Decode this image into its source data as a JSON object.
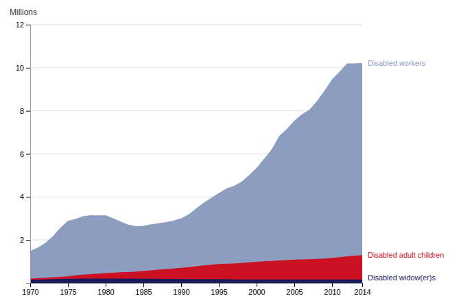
{
  "chart_data": {
    "type": "area",
    "ylabel": "Millions",
    "x": [
      1970,
      1971,
      1972,
      1973,
      1974,
      1975,
      1976,
      1977,
      1978,
      1979,
      1980,
      1981,
      1982,
      1983,
      1984,
      1985,
      1986,
      1987,
      1988,
      1989,
      1990,
      1991,
      1992,
      1993,
      1994,
      1995,
      1996,
      1997,
      1998,
      1999,
      2000,
      2001,
      2002,
      2003,
      2004,
      2005,
      2006,
      2007,
      2008,
      2009,
      2010,
      2011,
      2012,
      2013,
      2014
    ],
    "series": [
      {
        "name": "Disabled workers",
        "color": "#8c9dc0",
        "values": [
          1.49,
          1.65,
          1.86,
          2.17,
          2.57,
          2.89,
          2.98,
          3.1,
          3.15,
          3.14,
          3.15,
          3.01,
          2.86,
          2.71,
          2.64,
          2.66,
          2.73,
          2.78,
          2.83,
          2.9,
          3.01,
          3.19,
          3.47,
          3.73,
          3.96,
          4.18,
          4.39,
          4.51,
          4.7,
          5.01,
          5.35,
          5.78,
          6.21,
          6.83,
          7.15,
          7.54,
          7.84,
          8.05,
          8.45,
          8.94,
          9.46,
          9.82,
          10.2,
          10.2,
          10.22
        ]
      },
      {
        "name": "Disabled adult children",
        "color": "#cc1122",
        "values": [
          0.21,
          0.23,
          0.25,
          0.27,
          0.29,
          0.32,
          0.36,
          0.39,
          0.41,
          0.44,
          0.46,
          0.48,
          0.5,
          0.51,
          0.53,
          0.56,
          0.59,
          0.62,
          0.65,
          0.68,
          0.71,
          0.74,
          0.78,
          0.82,
          0.85,
          0.88,
          0.9,
          0.91,
          0.93,
          0.96,
          0.99,
          1.01,
          1.03,
          1.05,
          1.07,
          1.09,
          1.1,
          1.11,
          1.12,
          1.14,
          1.17,
          1.2,
          1.24,
          1.27,
          1.3
        ]
      },
      {
        "name": "Disabled widow(er)s",
        "color": "#1a1a5e",
        "values": [
          0.15,
          0.16,
          0.17,
          0.18,
          0.19,
          0.2,
          0.2,
          0.21,
          0.21,
          0.21,
          0.21,
          0.21,
          0.21,
          0.21,
          0.21,
          0.2,
          0.2,
          0.19,
          0.19,
          0.19,
          0.19,
          0.18,
          0.18,
          0.18,
          0.18,
          0.18,
          0.18,
          0.17,
          0.17,
          0.17,
          0.17,
          0.17,
          0.17,
          0.17,
          0.17,
          0.17,
          0.17,
          0.17,
          0.17,
          0.17,
          0.17,
          0.17,
          0.17,
          0.17,
          0.17
        ]
      }
    ],
    "xlim": [
      1970,
      2014
    ],
    "xticks": [
      1970,
      1975,
      1980,
      1985,
      1990,
      1995,
      2000,
      2005,
      2010,
      2014
    ],
    "ylim": [
      0,
      12
    ],
    "yticks": [
      2,
      4,
      6,
      8,
      10,
      12
    ],
    "grid": true
  }
}
